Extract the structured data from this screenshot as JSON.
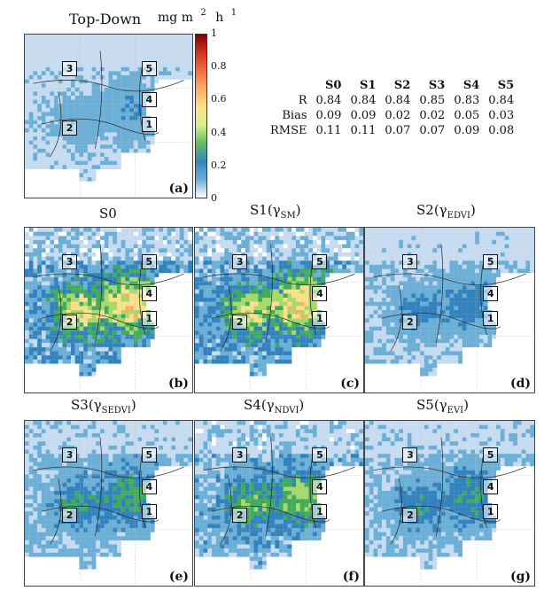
{
  "figure": {
    "top_title": "Top-Down",
    "unit_label": "mg m",
    "unit_exp1": "2",
    "unit_h": "h",
    "unit_exp2": "1"
  },
  "colorbar": {
    "ticks": [
      "1",
      "0.8",
      "0.6",
      "0.4",
      "0.2",
      "0"
    ],
    "colors": [
      "#7f0000",
      "#d7301f",
      "#f46d43",
      "#fdae61",
      "#fee08b",
      "#d9ef8b",
      "#66bd63",
      "#3288bd",
      "#6baed6",
      "#ffffff"
    ]
  },
  "panels": [
    {
      "id": "a",
      "title": "",
      "title_sub": "",
      "tag": "(a)",
      "intensity": 0.25
    },
    {
      "id": "b",
      "title": "S0",
      "title_sub": "",
      "title_close": "",
      "tag": "(b)",
      "intensity": 0.9
    },
    {
      "id": "c",
      "title": "S1(γ",
      "title_sub": "SM",
      "title_close": ")",
      "tag": "(c)",
      "intensity": 0.88
    },
    {
      "id": "d",
      "title": "S2(γ",
      "title_sub": "EDVI",
      "title_close": ")",
      "tag": "(d)",
      "intensity": 0.35
    },
    {
      "id": "e",
      "title": "S3(γ",
      "title_sub": "SEDVI",
      "title_close": ")",
      "tag": "(e)",
      "intensity": 0.5
    },
    {
      "id": "f",
      "title": "S4(γ",
      "title_sub": "NDVI",
      "title_close": ")",
      "tag": "(f)",
      "intensity": 0.65
    },
    {
      "id": "g",
      "title": "S5(γ",
      "title_sub": "EVI",
      "title_close": ")",
      "tag": "(g)",
      "intensity": 0.45
    }
  ],
  "region_labels": [
    "1",
    "2",
    "3",
    "4",
    "5"
  ],
  "chart_data": {
    "type": "table",
    "columns": [
      "",
      "S0",
      "S1",
      "S2",
      "S3",
      "S4",
      "S5"
    ],
    "rows": [
      {
        "label": "R",
        "values": [
          "0.84",
          "0.84",
          "0.84",
          "0.85",
          "0.83",
          "0.84"
        ]
      },
      {
        "label": "Bias",
        "values": [
          "0.09",
          "0.09",
          "0.02",
          "0.02",
          "0.05",
          "0.03"
        ]
      },
      {
        "label": "RMSE",
        "values": [
          "0.11",
          "0.11",
          "0.07",
          "0.07",
          "0.09",
          "0.08"
        ]
      }
    ],
    "colorbar_range": [
      0,
      1
    ]
  }
}
